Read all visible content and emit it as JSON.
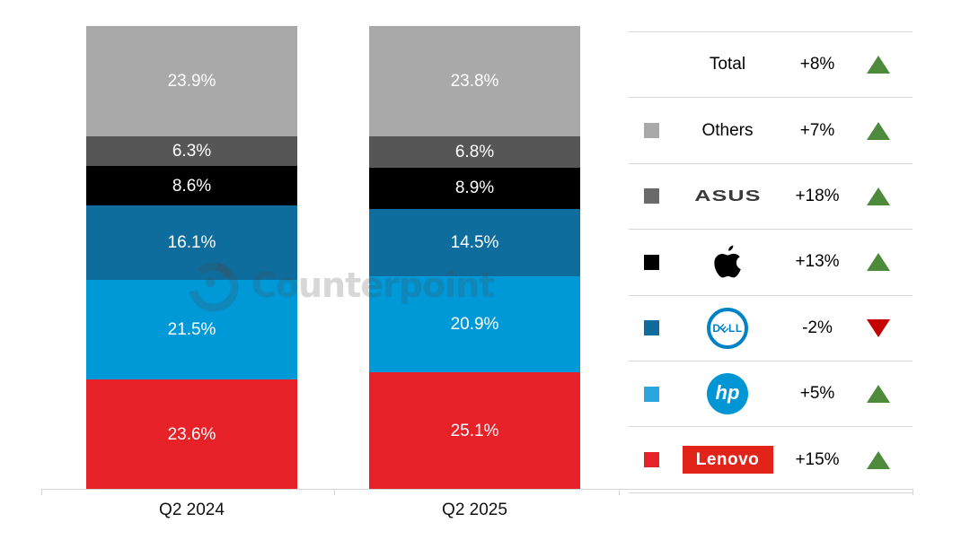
{
  "watermark": {
    "text": "Counterpoint",
    "logo": "counterpoint-c-logo"
  },
  "chart_data": {
    "type": "bar",
    "stacked": true,
    "title": "",
    "categories": [
      "Q2 2024",
      "Q2 2025"
    ],
    "unit": "%",
    "ylim": [
      0,
      100
    ],
    "gridlines": false,
    "value_labels": true,
    "legend_position": "right",
    "series": [
      {
        "name": "Others",
        "color": "#a9a9a9",
        "values": [
          23.9,
          23.8
        ]
      },
      {
        "name": "ASUS",
        "color": "#565656",
        "values": [
          6.3,
          6.8
        ]
      },
      {
        "name": "Apple",
        "color": "#000000",
        "values": [
          8.6,
          8.9
        ]
      },
      {
        "name": "Dell",
        "color": "#0f6d9e",
        "values": [
          16.1,
          14.5
        ]
      },
      {
        "name": "HP",
        "color": "#0099d8",
        "values": [
          21.5,
          20.9
        ]
      },
      {
        "name": "Lenovo",
        "color": "#e62128",
        "values": [
          23.6,
          25.1
        ]
      }
    ]
  },
  "legend": {
    "rows": [
      {
        "name": "Total",
        "change": "+8%",
        "direction": "up"
      },
      {
        "name": "Others",
        "change": "+7%",
        "direction": "up",
        "swatch": "#a9a9a9"
      },
      {
        "name": "ASUS",
        "change": "+18%",
        "direction": "up",
        "swatch": "#6a6a6a",
        "logo_text": "ASUS"
      },
      {
        "name": "Apple",
        "change": "+13%",
        "direction": "up",
        "swatch": "#000000"
      },
      {
        "name": "Dell",
        "change": "-2%",
        "direction": "down",
        "swatch": "#0f6d9e"
      },
      {
        "name": "HP",
        "change": "+5%",
        "direction": "up",
        "swatch": "#2aa5de",
        "logo_text": "hp"
      },
      {
        "name": "Lenovo",
        "change": "+15%",
        "direction": "up",
        "swatch": "#e62128",
        "logo_text": "Lenovo"
      }
    ],
    "dell_letters": {
      "d": "D",
      "e": "E",
      "ll": "LL"
    }
  },
  "colors": {
    "axis_line": "#d6d6d6",
    "bar_label_text": "#ffffff",
    "up_triangle": "#4e8a3c",
    "down_triangle": "#c40000",
    "asus_logo": "#3a3a3a",
    "dell_logo_blue": "#0082c6",
    "hp_logo_blue": "#0096d6",
    "lenovo_logo_red": "#e2231a",
    "watermark_gray": "rgba(72,72,72,0.22)"
  }
}
